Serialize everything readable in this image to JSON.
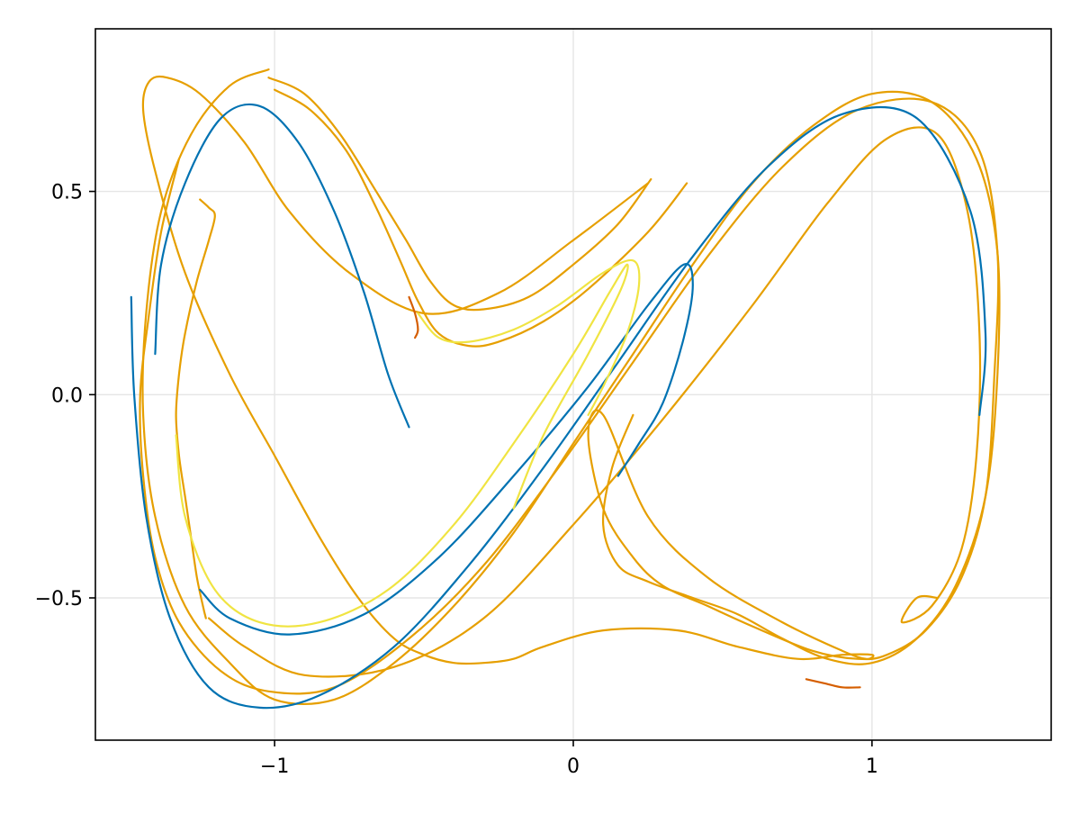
{
  "chart_data": {
    "type": "line",
    "title": "",
    "xlabel": "",
    "ylabel": "",
    "xlim": [
      -1.6,
      1.6
    ],
    "ylim": [
      -0.85,
      0.9
    ],
    "grid": true,
    "legend": "none",
    "x_ticks": [
      -1,
      0,
      1
    ],
    "x_tick_labels": [
      "−1",
      "0",
      "1"
    ],
    "y_ticks": [
      -0.5,
      0.0,
      0.5
    ],
    "y_tick_labels": [
      "−0.5",
      "0.0",
      "0.5"
    ],
    "colors": {
      "blue": "#0072b2",
      "orange": "#e69f00",
      "yellow": "#f0e442",
      "vermillion": "#d55e00",
      "grid": "#e5e5e5"
    },
    "series": [
      {
        "color": "#e69f00",
        "width": 2.2,
        "x": [
          -1.32,
          -1.38,
          -1.42,
          -1.45,
          -1.44,
          -1.4,
          -1.32,
          -1.18,
          -1.02,
          -0.8,
          -0.55,
          -0.3,
          -0.05,
          0.2,
          0.45,
          0.7,
          0.95,
          1.2,
          1.36,
          1.42,
          1.41,
          1.38,
          1.3,
          1.18,
          1.05,
          0.95,
          0.8,
          0.6,
          0.45,
          0.3,
          0.2,
          0.1,
          0.05,
          0.1,
          0.25,
          0.45,
          0.7,
          0.9,
          0.98,
          1.0,
          0.9,
          0.75,
          0.55,
          0.35,
          0.1,
          -0.1,
          -0.2,
          -0.3,
          -0.4,
          -0.5,
          -0.6,
          -0.72,
          -0.85,
          -1.0,
          -1.15,
          -1.3,
          -1.4,
          -1.44,
          -1.42,
          -1.36,
          -1.25,
          -1.1,
          -0.95,
          -0.75,
          -0.5,
          -0.25,
          0.0,
          0.25
        ],
        "y": [
          0.58,
          0.4,
          0.2,
          0.0,
          -0.2,
          -0.4,
          -0.56,
          -0.68,
          -0.73,
          -0.72,
          -0.6,
          -0.42,
          -0.18,
          0.08,
          0.34,
          0.56,
          0.7,
          0.72,
          0.6,
          0.35,
          0.05,
          -0.25,
          -0.45,
          -0.58,
          -0.64,
          -0.65,
          -0.63,
          -0.57,
          -0.52,
          -0.47,
          -0.4,
          -0.28,
          -0.1,
          -0.05,
          -0.3,
          -0.45,
          -0.56,
          -0.63,
          -0.65,
          -0.64,
          -0.64,
          -0.65,
          -0.62,
          -0.58,
          -0.58,
          -0.62,
          -0.65,
          -0.66,
          -0.66,
          -0.64,
          -0.6,
          -0.5,
          -0.35,
          -0.15,
          0.05,
          0.3,
          0.55,
          0.7,
          0.77,
          0.78,
          0.74,
          0.62,
          0.45,
          0.3,
          0.2,
          0.25,
          0.38,
          0.52
        ]
      },
      {
        "color": "#e69f00",
        "width": 2.2,
        "x": [
          -1.02,
          -1.15,
          -1.28,
          -1.38,
          -1.43,
          -1.44,
          -1.4,
          -1.3,
          -1.15,
          -1.0,
          -0.8,
          -0.6,
          -0.4,
          -0.2,
          0.0,
          0.2,
          0.4,
          0.6,
          0.8,
          1.0,
          1.2,
          1.35,
          1.42,
          1.42,
          1.38,
          1.28,
          1.15,
          1.0,
          0.85,
          0.7,
          0.55,
          0.4,
          0.25,
          0.15,
          0.1,
          0.13,
          0.2
        ],
        "y": [
          0.8,
          0.76,
          0.64,
          0.45,
          0.2,
          -0.05,
          -0.3,
          -0.52,
          -0.66,
          -0.75,
          -0.75,
          -0.66,
          -0.52,
          -0.34,
          -0.12,
          0.1,
          0.32,
          0.52,
          0.66,
          0.74,
          0.72,
          0.58,
          0.35,
          0.05,
          -0.25,
          -0.47,
          -0.6,
          -0.66,
          -0.65,
          -0.6,
          -0.54,
          -0.5,
          -0.46,
          -0.42,
          -0.32,
          -0.18,
          -0.05
        ]
      },
      {
        "color": "#e69f00",
        "width": 2.2,
        "x": [
          -1.02,
          -0.9,
          -0.78,
          -0.66,
          -0.56,
          -0.48,
          -0.4,
          -0.3,
          -0.15,
          0.0,
          0.15,
          0.26
        ],
        "y": [
          0.78,
          0.74,
          0.64,
          0.5,
          0.38,
          0.28,
          0.22,
          0.21,
          0.24,
          0.32,
          0.42,
          0.53
        ]
      },
      {
        "color": "#e69f00",
        "width": 2.2,
        "x": [
          -1.0,
          -0.88,
          -0.76,
          -0.66,
          -0.58,
          -0.52,
          -0.45,
          -0.35,
          -0.25,
          -0.1,
          0.05,
          0.25,
          0.38
        ],
        "y": [
          0.75,
          0.7,
          0.6,
          0.46,
          0.33,
          0.23,
          0.15,
          0.12,
          0.13,
          0.18,
          0.26,
          0.4,
          0.52
        ]
      },
      {
        "color": "#e69f00",
        "width": 2.2,
        "x": [
          -1.25,
          -1.22,
          -1.2,
          -1.22,
          -1.26,
          -1.3,
          -1.32,
          -1.33,
          -1.32,
          -1.3,
          -1.28,
          -1.26,
          -1.24,
          -1.23
        ],
        "y": [
          0.48,
          0.46,
          0.44,
          0.38,
          0.28,
          0.15,
          0.05,
          -0.05,
          -0.15,
          -0.25,
          -0.35,
          -0.45,
          -0.52,
          -0.55
        ]
      },
      {
        "color": "#e69f00",
        "width": 2.2,
        "x": [
          -1.22,
          -1.1,
          -0.9,
          -0.6,
          -0.3,
          0.0,
          0.3,
          0.6,
          0.85,
          1.05,
          1.22,
          1.32,
          1.36,
          1.35,
          1.3,
          1.2,
          1.1,
          1.15,
          1.22
        ],
        "y": [
          -0.55,
          -0.62,
          -0.69,
          -0.67,
          -0.55,
          -0.32,
          -0.06,
          0.22,
          0.47,
          0.63,
          0.64,
          0.45,
          0.15,
          -0.15,
          -0.38,
          -0.52,
          -0.56,
          -0.5,
          -0.5
        ]
      },
      {
        "color": "#0072b2",
        "width": 2.2,
        "x": [
          -0.55,
          -0.62,
          -0.7,
          -0.8,
          -0.92,
          -1.05,
          -1.18,
          -1.3,
          -1.38,
          -1.4
        ],
        "y": [
          -0.08,
          0.05,
          0.25,
          0.45,
          0.62,
          0.71,
          0.68,
          0.52,
          0.32,
          0.1
        ]
      },
      {
        "color": "#0072b2",
        "width": 2.2,
        "x": [
          -1.48,
          -1.47,
          -1.43,
          -1.35,
          -1.22,
          -1.05,
          -0.85,
          -0.6,
          -0.35,
          -0.1,
          0.15,
          0.4,
          0.65,
          0.9,
          1.15,
          1.33,
          1.38,
          1.36
        ],
        "y": [
          0.24,
          0.0,
          -0.3,
          -0.55,
          -0.72,
          -0.77,
          -0.74,
          -0.62,
          -0.42,
          -0.18,
          0.08,
          0.34,
          0.56,
          0.69,
          0.68,
          0.45,
          0.15,
          -0.05
        ]
      },
      {
        "color": "#0072b2",
        "width": 2.2,
        "x": [
          -1.25,
          -1.15,
          -0.95,
          -0.7,
          -0.45,
          -0.2,
          0.05,
          0.25,
          0.37,
          0.4,
          0.37,
          0.3,
          0.22,
          0.15
        ],
        "y": [
          -0.48,
          -0.55,
          -0.59,
          -0.54,
          -0.4,
          -0.2,
          0.02,
          0.22,
          0.32,
          0.27,
          0.14,
          -0.02,
          -0.12,
          -0.2
        ]
      },
      {
        "color": "#f0e442",
        "width": 2.2,
        "x": [
          -1.33,
          -1.3,
          -1.2,
          -1.05,
          -0.85,
          -0.62,
          -0.4,
          -0.2,
          0.0,
          0.12,
          0.18,
          0.16,
          0.05,
          -0.1,
          -0.2
        ],
        "y": [
          -0.1,
          -0.3,
          -0.48,
          -0.56,
          -0.56,
          -0.48,
          -0.32,
          -0.12,
          0.1,
          0.25,
          0.32,
          0.26,
          0.1,
          -0.1,
          -0.28
        ]
      },
      {
        "color": "#f0e442",
        "width": 2.2,
        "x": [
          -0.52,
          -0.45,
          -0.35,
          -0.2,
          -0.05,
          0.1,
          0.2,
          0.22,
          0.18,
          0.1,
          0.05
        ],
        "y": [
          0.2,
          0.14,
          0.13,
          0.16,
          0.22,
          0.3,
          0.33,
          0.27,
          0.15,
          0.02,
          -0.05
        ]
      },
      {
        "color": "#d55e00",
        "width": 2.2,
        "x": [
          -0.55,
          -0.53,
          -0.52,
          -0.53
        ],
        "y": [
          0.24,
          0.2,
          0.16,
          0.14
        ]
      },
      {
        "color": "#d55e00",
        "width": 2.2,
        "x": [
          0.78,
          0.84,
          0.9,
          0.96
        ],
        "y": [
          -0.7,
          -0.71,
          -0.72,
          -0.72
        ]
      }
    ]
  }
}
